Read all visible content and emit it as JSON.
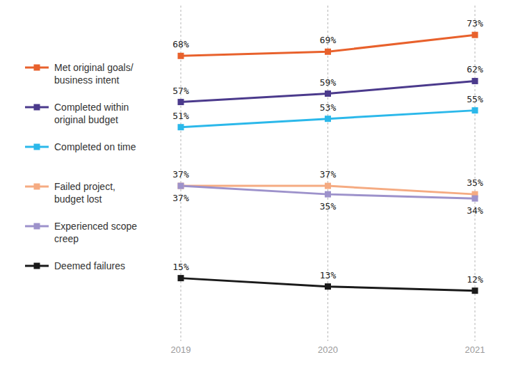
{
  "chart_data": {
    "type": "line",
    "categories": [
      "2019",
      "2020",
      "2021"
    ],
    "ylim": [
      0,
      80
    ],
    "grid": true,
    "legend": "left",
    "data_labels": true,
    "tick_labels": "x",
    "marker": "square",
    "series": [
      {
        "name": "Met original goals/ business intent",
        "color": "#e8612c",
        "values": [
          68,
          69,
          73
        ],
        "value_labels": [
          "68%",
          "69%",
          "73%"
        ]
      },
      {
        "name": "Completed within original budget",
        "color": "#4b3a8c",
        "values": [
          57,
          59,
          62
        ],
        "value_labels": [
          "57%",
          "59%",
          "62%"
        ]
      },
      {
        "name": "Completed on time",
        "color": "#2bb8ea",
        "values": [
          51,
          53,
          55
        ],
        "value_labels": [
          "51%",
          "53%",
          "55%"
        ]
      },
      {
        "name": "Failed project, budget lost",
        "color": "#f5ab82",
        "values": [
          37,
          37,
          35
        ],
        "value_labels": [
          "37%",
          "37%",
          "35%"
        ]
      },
      {
        "name": "Experienced scope creep",
        "color": "#9d92cb",
        "values": [
          37,
          35,
          34
        ],
        "value_labels": [
          "37%",
          "35%",
          "34%"
        ]
      },
      {
        "name": "Deemed failures",
        "color": "#1a1a1a",
        "values": [
          15,
          13,
          12
        ],
        "value_labels": [
          "15%",
          "13%",
          "12%"
        ]
      }
    ]
  }
}
